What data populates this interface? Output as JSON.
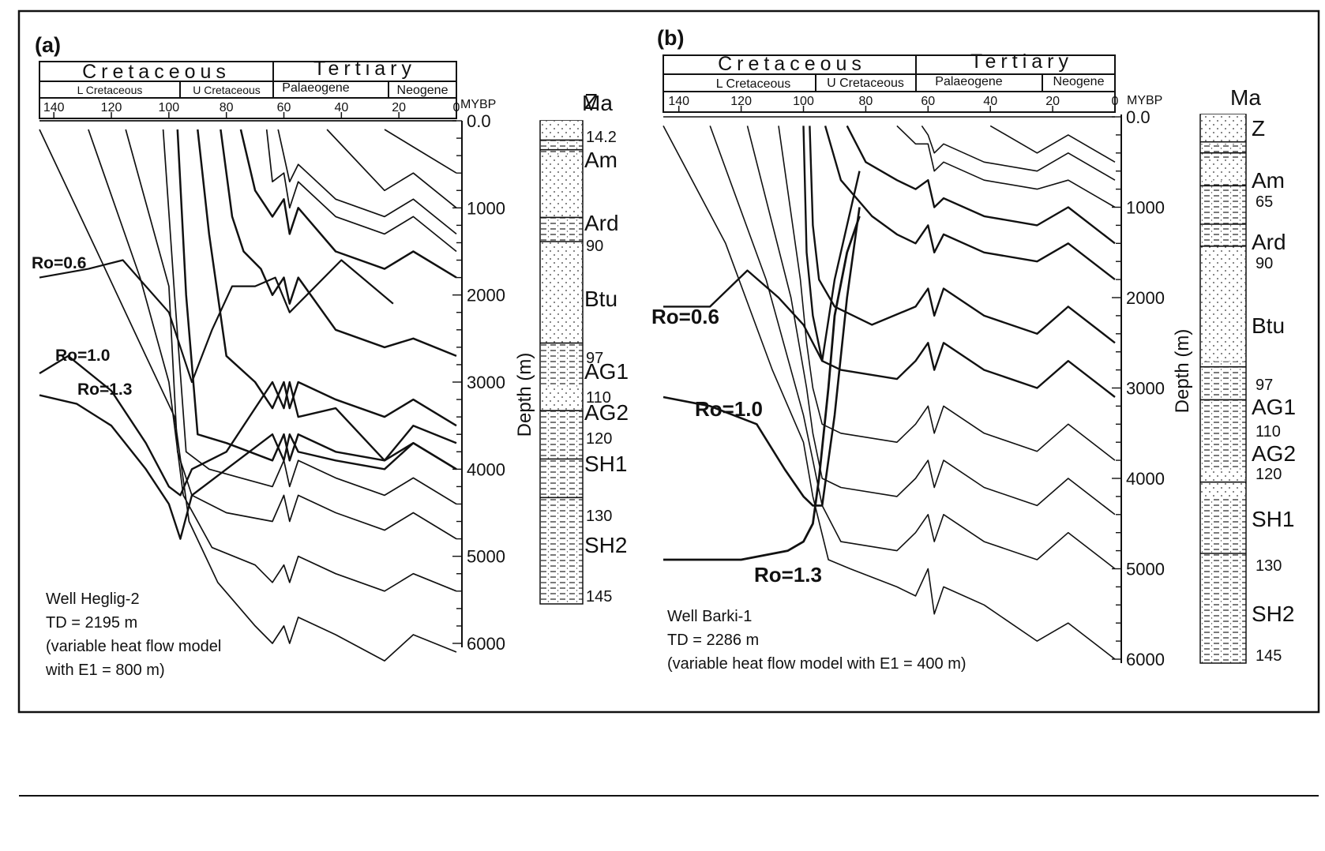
{
  "panels": [
    {
      "label": "(a)",
      "periods": [
        "Cretaceous",
        "Tertiary"
      ],
      "epochs": [
        "L Cretaceous",
        "U Cretaceous",
        "Palaeogene",
        "Neogene"
      ],
      "time_ticks": [
        "140",
        "120",
        "100",
        "80",
        "60",
        "40",
        "20",
        "0"
      ],
      "time_unit": "MYBP",
      "depth_ticks": [
        "0.0",
        "1000",
        "2000",
        "3000",
        "4000",
        "5000",
        "6000"
      ],
      "depth_axis_title": "Depth (m)",
      "ma_label": "Ma",
      "units": [
        {
          "name": "Z",
          "age": "14.2"
        },
        {
          "name": "Am",
          "age": ""
        },
        {
          "name": "Ard",
          "age": "90"
        },
        {
          "name": "Btu",
          "age": "97"
        },
        {
          "name": "AG1",
          "age": "110"
        },
        {
          "name": "AG2",
          "age": "120"
        },
        {
          "name": "SH1",
          "age": "130"
        },
        {
          "name": "SH2",
          "age": "145"
        }
      ],
      "ro_labels": [
        "Ro=0.6",
        "Ro=1.0",
        "Ro=1.3"
      ],
      "well_text": [
        "Well Heglig-2",
        "TD = 2195 m",
        "(variable heat flow model",
        "with E1 = 800 m)"
      ]
    },
    {
      "label": "(b)",
      "periods": [
        "Cretaceous",
        "Tertiary"
      ],
      "epochs": [
        "L Cretaceous",
        "U Cretaceous",
        "Palaeogene",
        "Neogene"
      ],
      "time_ticks": [
        "140",
        "120",
        "100",
        "80",
        "60",
        "40",
        "20",
        "0"
      ],
      "time_unit": "MYBP",
      "depth_ticks": [
        "0.0",
        "1000",
        "2000",
        "3000",
        "4000",
        "5000",
        "6000"
      ],
      "depth_axis_title": "Depth (m)",
      "ma_label": "Ma",
      "units": [
        {
          "name": "Z",
          "age": ""
        },
        {
          "name": "Am",
          "age": "65"
        },
        {
          "name": "Ard",
          "age": "90"
        },
        {
          "name": "Btu",
          "age": "97"
        },
        {
          "name": "AG1",
          "age": "110"
        },
        {
          "name": "AG2",
          "age": "120"
        },
        {
          "name": "SH1",
          "age": "130"
        },
        {
          "name": "SH2",
          "age": "145"
        }
      ],
      "ro_labels": [
        "Ro=0.6",
        "Ro=1.0",
        "Ro=1.3"
      ],
      "well_text": [
        "Well Barki-1",
        "TD = 2286 m",
        "(variable heat flow model with E1 = 400 m)"
      ]
    }
  ],
  "chart_data": [
    {
      "type": "line",
      "subtype": "burial history",
      "title": "",
      "xlabel": "MYBP",
      "ylabel": "Depth (m)",
      "xlim": [
        145,
        0
      ],
      "ylim": [
        6500,
        0
      ],
      "series": [
        {
          "x": [
            145,
            0
          ],
          "y": [
            0,
            0
          ]
        },
        {
          "x": [
            145,
            125,
            108,
            98,
            93,
            83,
            70,
            64,
            60,
            58,
            55,
            42,
            25,
            15,
            0
          ],
          "y": [
            100,
            1500,
            2700,
            3400,
            4600,
            5300,
            5800,
            6000,
            5800,
            6000,
            5700,
            5900,
            6200,
            5900,
            6100
          ]
        },
        {
          "x": [
            128,
            110,
            100,
            95,
            85,
            70,
            64,
            60,
            58,
            55,
            42,
            25,
            15,
            0
          ],
          "y": [
            100,
            1800,
            3000,
            4300,
            4900,
            5100,
            5300,
            5100,
            5300,
            5000,
            5200,
            5400,
            5200,
            5400
          ]
        },
        {
          "x": [
            115,
            100,
            97,
            92,
            80,
            64,
            60,
            58,
            55,
            42,
            25,
            15,
            0
          ],
          "y": [
            100,
            1900,
            3800,
            4300,
            4500,
            4600,
            4300,
            4600,
            4300,
            4500,
            4700,
            4500,
            4800
          ]
        },
        {
          "x": [
            102,
            98,
            94,
            86,
            75,
            64,
            60,
            58,
            55,
            42,
            25,
            15,
            0
          ],
          "y": [
            100,
            2000,
            3800,
            4000,
            4100,
            4200,
            3900,
            4200,
            3900,
            4100,
            4300,
            4100,
            4400
          ]
        },
        {
          "x": [
            97,
            94,
            90,
            80,
            64,
            60,
            58,
            55,
            42,
            25,
            15,
            0
          ],
          "y": [
            100,
            2000,
            3600,
            3700,
            3900,
            3600,
            3900,
            3600,
            3800,
            3900,
            3700,
            4000
          ]
        },
        {
          "x": [
            90,
            86,
            80,
            70,
            64,
            60,
            58,
            55,
            42,
            25,
            15,
            0
          ],
          "y": [
            100,
            1300,
            2700,
            3000,
            3300,
            3000,
            3300,
            3000,
            3200,
            3400,
            3200,
            3500
          ]
        },
        {
          "x": [
            82,
            78,
            74,
            68,
            64,
            60,
            58,
            55,
            42,
            25,
            15,
            0
          ],
          "y": [
            100,
            1100,
            1500,
            1700,
            2000,
            1800,
            2100,
            1800,
            2400,
            2600,
            2500,
            2700
          ]
        },
        {
          "x": [
            75,
            70,
            66,
            64,
            60,
            58,
            55,
            42,
            25,
            15,
            0
          ],
          "y": [
            100,
            800,
            1000,
            1100,
            900,
            1300,
            1000,
            1500,
            1700,
            1500,
            1800
          ]
        },
        {
          "x": [
            66,
            64,
            60,
            58,
            55,
            42,
            25,
            15,
            0
          ],
          "y": [
            100,
            700,
            600,
            1000,
            700,
            1100,
            1300,
            1100,
            1500
          ]
        },
        {
          "x": [
            62,
            60,
            58,
            55,
            42,
            25,
            15,
            0
          ],
          "y": [
            100,
            400,
            700,
            500,
            900,
            1100,
            900,
            1300
          ]
        },
        {
          "x": [
            45,
            25,
            15,
            0
          ],
          "y": [
            100,
            800,
            600,
            1000
          ]
        },
        {
          "x": [
            25,
            15,
            0
          ],
          "y": [
            100,
            300,
            600
          ]
        }
      ],
      "ro_annotations": [
        "Ro=0.6",
        "Ro=1.0",
        "Ro=1.3"
      ]
    },
    {
      "type": "line",
      "subtype": "burial history",
      "title": "",
      "xlabel": "MYBP",
      "ylabel": "Depth (m)",
      "xlim": [
        145,
        0
      ],
      "ylim": [
        6000,
        0
      ],
      "series": [
        {
          "x": [
            145,
            0
          ],
          "y": [
            0,
            0
          ]
        },
        {
          "x": [
            145,
            125,
            110,
            100,
            97,
            92,
            85,
            70,
            64,
            60,
            58,
            55,
            42,
            25,
            15,
            0
          ],
          "y": [
            100,
            1400,
            2800,
            3600,
            4200,
            4900,
            5000,
            5200,
            5300,
            5000,
            5500,
            5200,
            5400,
            5800,
            5600,
            6000
          ]
        },
        {
          "x": [
            130,
            112,
            100,
            97,
            94,
            88,
            70,
            64,
            60,
            58,
            55,
            42,
            25,
            15,
            0
          ],
          "y": [
            100,
            1800,
            3300,
            3800,
            4300,
            4700,
            4800,
            4600,
            4400,
            4700,
            4400,
            4700,
            4900,
            4600,
            5000
          ]
        },
        {
          "x": [
            118,
            104,
            99,
            97,
            94,
            88,
            70,
            64,
            60,
            58,
            55,
            42,
            25,
            15,
            0
          ],
          "y": [
            100,
            2000,
            3000,
            3500,
            4000,
            4100,
            4200,
            4000,
            3800,
            4100,
            3800,
            4100,
            4300,
            4000,
            4400
          ]
        },
        {
          "x": [
            108,
            101,
            99,
            97,
            94,
            88,
            70,
            64,
            60,
            58,
            55,
            42,
            25,
            15,
            0
          ],
          "y": [
            100,
            1800,
            2500,
            3000,
            3400,
            3500,
            3600,
            3400,
            3200,
            3500,
            3200,
            3500,
            3700,
            3400,
            3800
          ]
        },
        {
          "x": [
            100,
            99,
            97,
            94,
            88,
            70,
            64,
            60,
            58,
            55,
            42,
            25,
            15,
            0
          ],
          "y": [
            100,
            1500,
            2200,
            2700,
            2800,
            2900,
            2700,
            2500,
            2800,
            2500,
            2800,
            3000,
            2700,
            3100
          ]
        },
        {
          "x": [
            98,
            97,
            95,
            90,
            78,
            64,
            60,
            58,
            55,
            42,
            25,
            15,
            0
          ],
          "y": [
            100,
            1200,
            1800,
            2100,
            2300,
            2100,
            1900,
            2200,
            1900,
            2200,
            2400,
            2100,
            2500
          ]
        },
        {
          "x": [
            93,
            88,
            78,
            70,
            64,
            60,
            58,
            55,
            42,
            25,
            15,
            0
          ],
          "y": [
            100,
            700,
            1100,
            1300,
            1400,
            1200,
            1500,
            1300,
            1500,
            1600,
            1400,
            1800
          ]
        },
        {
          "x": [
            86,
            80,
            70,
            64,
            60,
            58,
            55,
            42,
            25,
            15,
            0
          ],
          "y": [
            100,
            500,
            700,
            800,
            700,
            1000,
            900,
            1100,
            1200,
            1000,
            1400
          ]
        },
        {
          "x": [
            70,
            64,
            60,
            58,
            55,
            42,
            25,
            15,
            0
          ],
          "y": [
            100,
            300,
            300,
            600,
            500,
            700,
            800,
            700,
            1000
          ]
        },
        {
          "x": [
            62,
            60,
            58,
            55,
            42,
            25,
            15,
            0
          ],
          "y": [
            100,
            200,
            400,
            300,
            500,
            600,
            400,
            700
          ]
        },
        {
          "x": [
            40,
            25,
            15,
            0
          ],
          "y": [
            100,
            400,
            200,
            500
          ]
        }
      ],
      "ro_annotations": [
        "Ro=0.6",
        "Ro=1.0",
        "Ro=1.3"
      ]
    }
  ]
}
